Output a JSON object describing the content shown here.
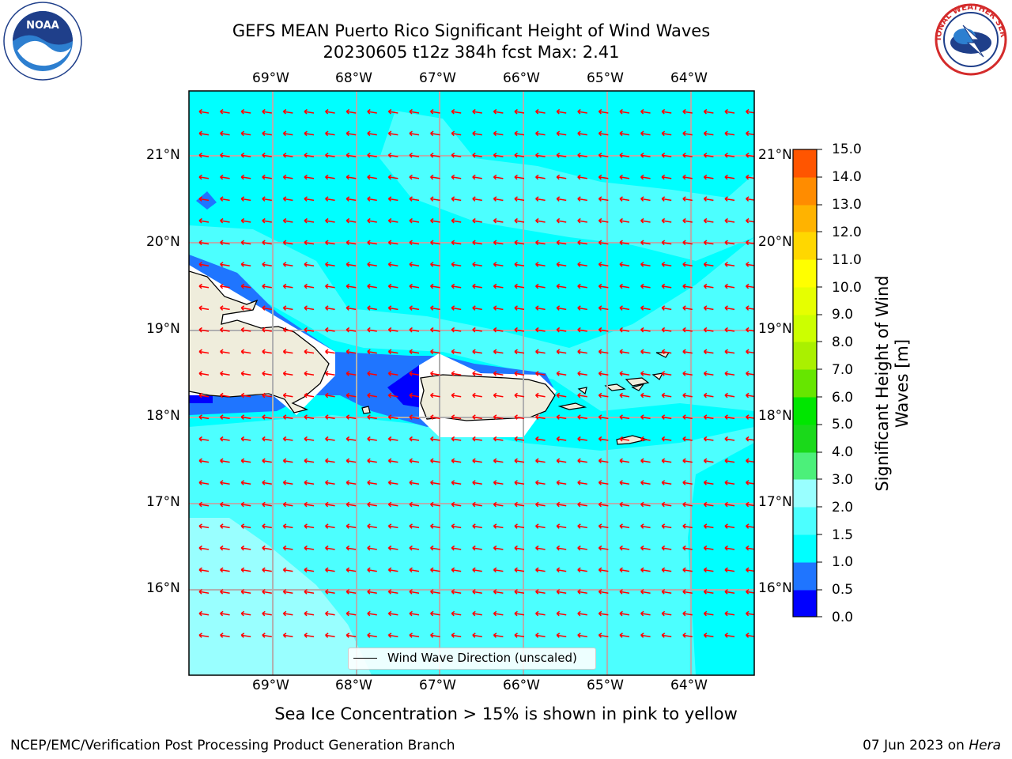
{
  "header": {
    "title_line1": "GEFS MEAN Puerto Rico Significant Height of Wind Waves",
    "title_line2": "20230605 t12z 384h fcst   Max: 2.41"
  },
  "logos": {
    "left": "NOAA",
    "right": "NATIONAL WEATHER SERVICE"
  },
  "map": {
    "lon_ticks": [
      "69°W",
      "68°W",
      "67°W",
      "66°W",
      "65°W",
      "64°W"
    ],
    "lat_ticks": [
      "21°N",
      "20°N",
      "19°N",
      "18°N",
      "17°N",
      "16°N"
    ],
    "legend_label": "Wind Wave Direction (unscaled)",
    "arrow_color": "#ff0000",
    "land_color": "#efeddc",
    "grid_color": "#b0b0b0"
  },
  "colorbar": {
    "label": "Significant Height of Wind Waves [m]",
    "ticks": [
      "15.0",
      "14.0",
      "13.0",
      "12.0",
      "11.0",
      "10.0",
      "9.0",
      "8.0",
      "7.0",
      "6.0",
      "5.0",
      "4.0",
      "3.0",
      "2.0",
      "1.5",
      "1.0",
      "0.5",
      "0.0"
    ],
    "colors": [
      "#0000ff",
      "#1f75ff",
      "#00ffff",
      "#4cffff",
      "#99ffff",
      "#4cf07a",
      "#1ad91a",
      "#00e600",
      "#66e600",
      "#aaf000",
      "#ccff00",
      "#e6ff00",
      "#ffff00",
      "#ffd700",
      "#ffb300",
      "#ff8c00",
      "#ff5500",
      "#ff2a00",
      "#ff0000"
    ]
  },
  "notes": {
    "ice": "Sea Ice Concentration > 15% is shown in pink to yellow"
  },
  "footer": {
    "left": "NCEP/EMC/Verification Post Processing Product Generation Branch",
    "date": "07 Jun 2023 on ",
    "host": "Hera"
  }
}
